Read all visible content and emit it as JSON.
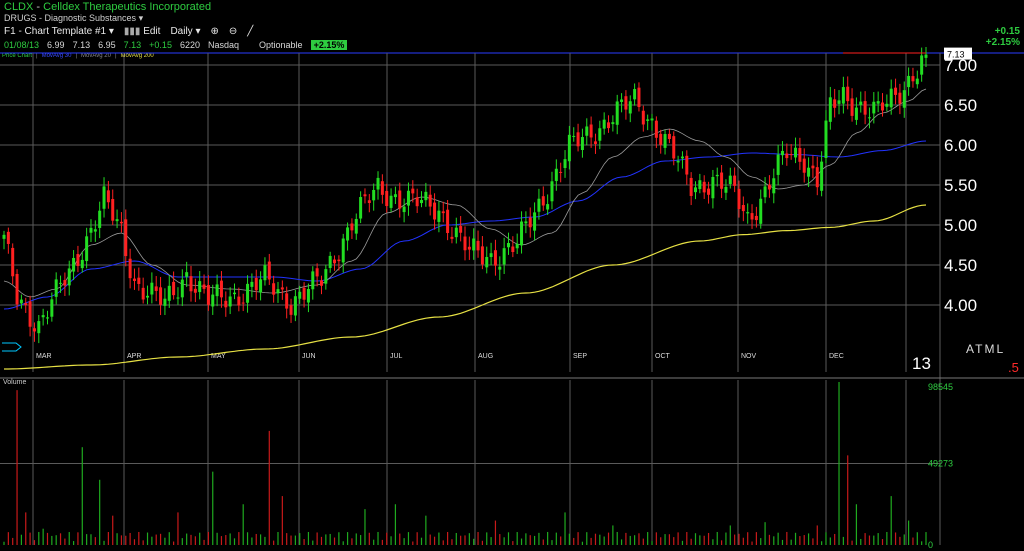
{
  "header": {
    "symbol": "CLDX",
    "company": "Celldex Therapeutics Incorporated",
    "industry": "DRUGS - Diagnostic Substances",
    "template": "F1 - Chart Template #1",
    "edit_label": "Edit",
    "period": "Daily"
  },
  "quote": {
    "date": "01/08/13",
    "open": "6.99",
    "high": "7.13",
    "low": "6.95",
    "last": "7.13",
    "change": "+0.15",
    "volume": "6220",
    "exchange": "Nasdaq",
    "optionable": "Optionable",
    "pct": "+2.15%"
  },
  "top_right": {
    "change": "+0.15",
    "pct": "+2.15%"
  },
  "legend": {
    "price": "Price Chart",
    "ma30": "MovAvg 30",
    "ma20": "MovAvg 20",
    "ma200": "MovAvg 200"
  },
  "volume_label": "Volume",
  "bottom_right": {
    "atml": "ATML",
    "year": "13",
    "five": ".5"
  },
  "colors": {
    "up": "#22dd22",
    "down": "#ff2020",
    "ma_short": "#9a9a9a",
    "ma_mid": "#2233ff",
    "ma_long": "#e6e044",
    "grid": "#5a5a5a",
    "volume": "#1faa1f",
    "volume_down": "#c81a1a"
  },
  "chart_data": {
    "type": "candlestick",
    "months": [
      "MAR",
      "APR",
      "MAY",
      "JUN",
      "JUL",
      "AUG",
      "SEP",
      "OCT",
      "NOV",
      "DEC"
    ],
    "y_ticks": [
      "7.00",
      "6.50",
      "6.00",
      "5.50",
      "5.00",
      "4.50",
      "4.00"
    ],
    "ylim": [
      3.6,
      7.15
    ],
    "last_price_label": "7.13",
    "volume_ticks": [
      "98545",
      "49273",
      "0"
    ],
    "volume_max": 98545,
    "close_anchors": [
      [
        0,
        4.8
      ],
      [
        3,
        4.1
      ],
      [
        8,
        3.75
      ],
      [
        15,
        4.4
      ],
      [
        20,
        4.95
      ],
      [
        23,
        5.3
      ],
      [
        27,
        4.9
      ],
      [
        30,
        4.3
      ],
      [
        37,
        4.0
      ],
      [
        42,
        4.4
      ],
      [
        47,
        4.05
      ],
      [
        52,
        4.1
      ],
      [
        60,
        4.3
      ],
      [
        66,
        4.05
      ],
      [
        73,
        4.3
      ],
      [
        80,
        5.05
      ],
      [
        86,
        5.45
      ],
      [
        93,
        5.3
      ],
      [
        100,
        5.2
      ],
      [
        107,
        4.65
      ],
      [
        112,
        4.6
      ],
      [
        118,
        4.75
      ],
      [
        124,
        5.35
      ],
      [
        130,
        5.95
      ],
      [
        136,
        6.2
      ],
      [
        141,
        6.4
      ],
      [
        145,
        6.55
      ],
      [
        149,
        6.3
      ],
      [
        153,
        5.95
      ],
      [
        158,
        5.5
      ],
      [
        163,
        5.55
      ],
      [
        168,
        5.4
      ],
      [
        171,
        5.1
      ],
      [
        175,
        5.4
      ],
      [
        180,
        5.9
      ],
      [
        184,
        5.85
      ],
      [
        187,
        5.55
      ],
      [
        190,
        6.45
      ],
      [
        193,
        6.6
      ],
      [
        197,
        6.5
      ],
      [
        201,
        6.4
      ],
      [
        205,
        6.6
      ],
      [
        209,
        6.9
      ],
      [
        212,
        7.13
      ]
    ],
    "ma_short_points": [
      [
        0,
        4.3
      ],
      [
        6,
        4.1
      ],
      [
        12,
        4.2
      ],
      [
        20,
        4.75
      ],
      [
        27,
        4.9
      ],
      [
        34,
        4.5
      ],
      [
        42,
        4.25
      ],
      [
        52,
        4.2
      ],
      [
        62,
        4.15
      ],
      [
        72,
        4.25
      ],
      [
        80,
        4.55
      ],
      [
        88,
        5.15
      ],
      [
        96,
        5.35
      ],
      [
        104,
        5.25
      ],
      [
        112,
        4.95
      ],
      [
        119,
        4.75
      ],
      [
        126,
        4.9
      ],
      [
        133,
        5.4
      ],
      [
        140,
        5.85
      ],
      [
        147,
        6.1
      ],
      [
        153,
        6.2
      ],
      [
        160,
        6.05
      ],
      [
        166,
        5.85
      ],
      [
        172,
        5.6
      ],
      [
        178,
        5.45
      ],
      [
        184,
        5.5
      ],
      [
        190,
        5.75
      ],
      [
        196,
        6.15
      ],
      [
        202,
        6.4
      ],
      [
        208,
        6.55
      ],
      [
        212,
        6.7
      ]
    ],
    "ma_mid_points": [
      [
        0,
        3.95
      ],
      [
        10,
        4.1
      ],
      [
        20,
        4.45
      ],
      [
        30,
        4.55
      ],
      [
        40,
        4.35
      ],
      [
        52,
        4.35
      ],
      [
        62,
        4.35
      ],
      [
        72,
        4.3
      ],
      [
        82,
        4.45
      ],
      [
        92,
        4.8
      ],
      [
        102,
        5.0
      ],
      [
        112,
        5.05
      ],
      [
        122,
        5.1
      ],
      [
        132,
        5.3
      ],
      [
        142,
        5.6
      ],
      [
        152,
        5.8
      ],
      [
        162,
        5.85
      ],
      [
        172,
        5.9
      ],
      [
        182,
        5.88
      ],
      [
        192,
        5.85
      ],
      [
        202,
        5.93
      ],
      [
        212,
        6.05
      ]
    ],
    "ma_long_points": [
      [
        0,
        3.2
      ],
      [
        20,
        3.25
      ],
      [
        40,
        3.35
      ],
      [
        60,
        3.45
      ],
      [
        80,
        3.6
      ],
      [
        100,
        3.85
      ],
      [
        120,
        4.15
      ],
      [
        140,
        4.5
      ],
      [
        160,
        4.8
      ],
      [
        170,
        4.88
      ],
      [
        180,
        4.93
      ],
      [
        190,
        4.97
      ],
      [
        200,
        5.05
      ],
      [
        212,
        5.25
      ]
    ],
    "volume_spikes": [
      [
        3,
        0.95
      ],
      [
        5,
        0.2
      ],
      [
        9,
        0.1
      ],
      [
        18,
        0.6
      ],
      [
        22,
        0.4
      ],
      [
        25,
        0.18
      ],
      [
        40,
        0.2
      ],
      [
        48,
        0.45
      ],
      [
        55,
        0.25
      ],
      [
        61,
        0.7
      ],
      [
        64,
        0.3
      ],
      [
        83,
        0.22
      ],
      [
        90,
        0.25
      ],
      [
        97,
        0.18
      ],
      [
        113,
        0.15
      ],
      [
        129,
        0.2
      ],
      [
        140,
        0.12
      ],
      [
        167,
        0.12
      ],
      [
        175,
        0.14
      ],
      [
        187,
        0.12
      ],
      [
        192,
        1.0
      ],
      [
        194,
        0.55
      ],
      [
        196,
        0.25
      ],
      [
        204,
        0.3
      ],
      [
        208,
        0.15
      ]
    ]
  }
}
